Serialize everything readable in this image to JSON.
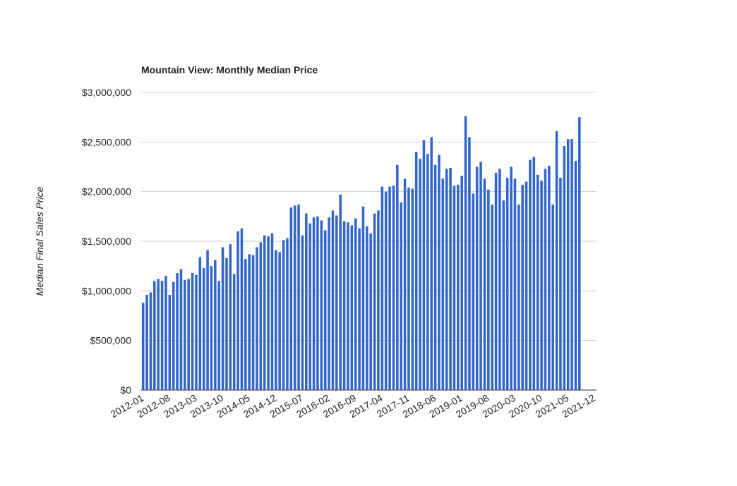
{
  "chart_data": {
    "type": "bar",
    "title": "Mountain View: Monthly Median Price",
    "y_label": "Median Final Sales Price",
    "categories": [
      "2012-01",
      null,
      null,
      null,
      null,
      null,
      null,
      "2012-08",
      null,
      null,
      null,
      null,
      null,
      null,
      "2013-03",
      null,
      null,
      null,
      null,
      null,
      null,
      "2013-10",
      null,
      null,
      null,
      null,
      null,
      null,
      "2014-05",
      null,
      null,
      null,
      null,
      null,
      null,
      "2014-12",
      null,
      null,
      null,
      null,
      null,
      null,
      "2015-07",
      null,
      null,
      null,
      null,
      null,
      null,
      "2016-02",
      null,
      null,
      null,
      null,
      null,
      null,
      "2016-09",
      null,
      null,
      null,
      null,
      null,
      null,
      "2017-04",
      null,
      null,
      null,
      null,
      null,
      null,
      "2017-11",
      null,
      null,
      null,
      null,
      null,
      null,
      "2018-06",
      null,
      null,
      null,
      null,
      null,
      null,
      "2019-01",
      null,
      null,
      null,
      null,
      null,
      null,
      "2019-08",
      null,
      null,
      null,
      null,
      null,
      null,
      "2020-03",
      null,
      null,
      null,
      null,
      null,
      null,
      "2020-10",
      null,
      null,
      null,
      null,
      null,
      null,
      "2021-05",
      null,
      null,
      null,
      null,
      null,
      null,
      "2021-12"
    ],
    "values": [
      880000,
      960000,
      985000,
      1100000,
      1120000,
      1100000,
      1150000,
      960000,
      1090000,
      1180000,
      1220000,
      1110000,
      1120000,
      1180000,
      1160000,
      1340000,
      1230000,
      1410000,
      1250000,
      1310000,
      1100000,
      1440000,
      1330000,
      1470000,
      1170000,
      1600000,
      1630000,
      1320000,
      1370000,
      1360000,
      1440000,
      1490000,
      1560000,
      1550000,
      1580000,
      1410000,
      1390000,
      1510000,
      1530000,
      1840000,
      1860000,
      1870000,
      1560000,
      1780000,
      1680000,
      1740000,
      1750000,
      1710000,
      1610000,
      1740000,
      1810000,
      1760000,
      1970000,
      1700000,
      1690000,
      1660000,
      1730000,
      1630000,
      1850000,
      1650000,
      1580000,
      1780000,
      1810000,
      2050000,
      2000000,
      2050000,
      2060000,
      2270000,
      1890000,
      2130000,
      2040000,
      2030000,
      2400000,
      2330000,
      2520000,
      2380000,
      2550000,
      2270000,
      2370000,
      2130000,
      2230000,
      2240000,
      2060000,
      2070000,
      2160000,
      2760000,
      2550000,
      1980000,
      2250000,
      2300000,
      2130000,
      2020000,
      1870000,
      2190000,
      2230000,
      1910000,
      2140000,
      2250000,
      2130000,
      1870000,
      2070000,
      2100000,
      2320000,
      2350000,
      2170000,
      2110000,
      2230000,
      2260000,
      1870000,
      2610000,
      2140000,
      2460000,
      2530000,
      2530000,
      2310000,
      2750000,
      null,
      null,
      null,
      null
    ],
    "color": "#3366cc",
    "ylim": [
      0,
      3000000
    ],
    "yticks": [
      {
        "value": 0,
        "label": "$0"
      },
      {
        "value": 500000,
        "label": "$500,000"
      },
      {
        "value": 1000000,
        "label": "$1,000,000"
      },
      {
        "value": 1500000,
        "label": "$1,500,000"
      },
      {
        "value": 2000000,
        "label": "$2,000,000"
      },
      {
        "value": 2500000,
        "label": "$2,500,000"
      },
      {
        "value": 3000000,
        "label": "$3,000,000"
      }
    ],
    "grid": true
  }
}
